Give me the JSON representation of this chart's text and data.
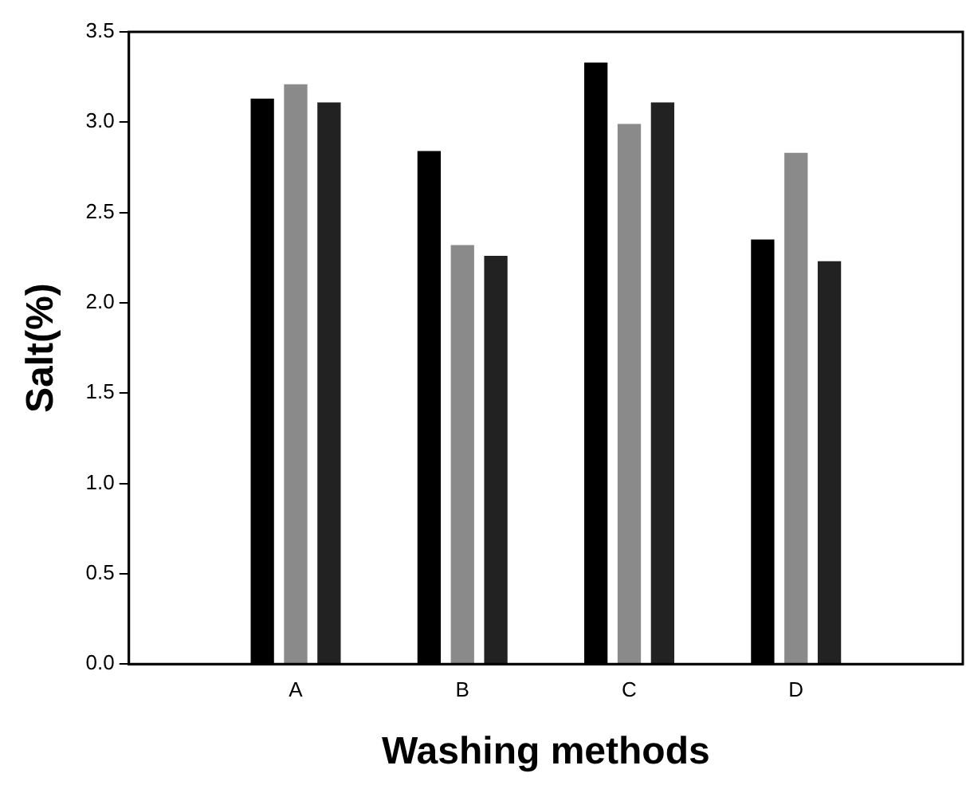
{
  "chart_data": {
    "type": "bar",
    "xlabel": "Washing methods",
    "ylabel": "Salt(%)",
    "categories": [
      "A",
      "B",
      "C",
      "D"
    ],
    "series": [
      {
        "color": "#000000",
        "values": [
          3.13,
          2.84,
          3.33,
          2.35
        ]
      },
      {
        "color": "#8a8a8a",
        "values": [
          3.21,
          2.32,
          2.99,
          2.83
        ]
      },
      {
        "color": "#222222",
        "values": [
          3.11,
          2.26,
          3.11,
          2.23
        ]
      }
    ],
    "ylim": [
      0,
      3.5
    ],
    "yticks": [
      {
        "value": 0,
        "label": "0.0"
      },
      0.5,
      {
        "value": 1,
        "label": "1.0"
      },
      1.5,
      {
        "value": 2,
        "label": "2.0"
      },
      2.5,
      {
        "value": 3,
        "label": "3.0"
      },
      3.5
    ],
    "grid": false,
    "legend": false
  }
}
